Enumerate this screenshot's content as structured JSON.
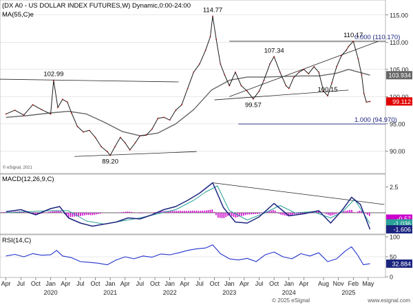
{
  "chart_data": [
    {
      "type": "line",
      "panel": "price",
      "title": "(DX A0 - US DOLLAR INDEX FUTURES,W) Dynamic,0:00-24:00",
      "indicator_label": "MA(55,C)e",
      "watermark": "© eSignal, 2021",
      "ylim": [
        86.0,
        117.5
      ],
      "y_ticks": [
        90.0,
        95.0,
        100.0,
        105.0,
        110.0,
        115.0
      ],
      "y_tick_labels": [
        "90.00",
        "95.00",
        "100.00",
        "105.00",
        "110.00",
        "115.00"
      ],
      "series": [
        {
          "name": "",
          "x": [
            2019.25,
            2019.4,
            2019.55,
            2019.7,
            2019.85,
            2020.0,
            2020.05,
            2020.12,
            2020.2,
            2020.28,
            2020.35,
            2020.45,
            2020.55,
            2020.65,
            2020.75,
            2020.85,
            2020.95,
            2021.0,
            2021.08,
            2021.17,
            2021.25,
            2021.33,
            2021.42,
            2021.5,
            2021.6,
            2021.7,
            2021.8,
            2021.9,
            2022.0,
            2022.1,
            2022.2,
            2022.3,
            2022.4,
            2022.5,
            2022.6,
            2022.68,
            2022.72,
            2022.78,
            2022.85,
            2022.92,
            2023.0,
            2023.1,
            2023.2,
            2023.3,
            2023.4,
            2023.5,
            2023.58,
            2023.68,
            2023.75,
            2023.85,
            2023.95,
            2024.0,
            2024.08,
            2024.17,
            2024.25,
            2024.33,
            2024.42,
            2024.5,
            2024.58,
            2024.65,
            2024.72,
            2024.8,
            2024.88,
            2024.96,
            2025.0,
            2025.08,
            2025.16,
            2025.22,
            2025.26,
            2025.3,
            2025.36
          ],
          "values": [
            96.8,
            97.5,
            96.6,
            98.5,
            97.6,
            96.8,
            102.99,
            98.0,
            99.5,
            99.0,
            97.0,
            94.5,
            93.5,
            93.8,
            92.5,
            90.8,
            89.9,
            89.2,
            90.8,
            92.5,
            91.5,
            90.2,
            91.5,
            92.8,
            92.9,
            94.0,
            96.0,
            96.2,
            95.7,
            97.5,
            98.5,
            101.5,
            104.5,
            106.0,
            108.5,
            111.0,
            114.77,
            110.5,
            106.0,
            104.0,
            102.0,
            104.5,
            102.0,
            101.0,
            99.57,
            101.0,
            103.0,
            106.0,
            107.34,
            104.5,
            102.0,
            101.5,
            103.5,
            104.5,
            105.0,
            104.2,
            105.5,
            104.5,
            101.0,
            100.15,
            102.5,
            105.5,
            107.5,
            108.5,
            109.2,
            110.17,
            107.0,
            104.0,
            100.5,
            99.0,
            99.112
          ]
        },
        {
          "name": "MA(55,C)e",
          "x": [
            2019.25,
            2019.6,
            2020.0,
            2020.3,
            2020.6,
            2020.9,
            2021.2,
            2021.5,
            2021.8,
            2022.1,
            2022.4,
            2022.7,
            2023.0,
            2023.3,
            2023.6,
            2023.9,
            2024.2,
            2024.5,
            2024.8,
            2025.0,
            2025.36
          ],
          "values": [
            96.2,
            96.5,
            97.0,
            97.3,
            96.8,
            95.3,
            93.6,
            92.8,
            93.3,
            95.0,
            97.6,
            101.2,
            103.0,
            103.6,
            103.6,
            103.7,
            103.8,
            103.8,
            104.3,
            105.0,
            103.934
          ]
        }
      ],
      "annotations": [
        {
          "text": "102.99",
          "x": 2020.05,
          "y": 102.99
        },
        {
          "text": "89.20",
          "x": 2021.0,
          "y": 89.2
        },
        {
          "text": "114.77",
          "x": 2022.72,
          "y": 114.77
        },
        {
          "text": "107.34",
          "x": 2023.75,
          "y": 107.34
        },
        {
          "text": "99.57",
          "x": 2023.4,
          "y": 99.57
        },
        {
          "text": "110.17",
          "x": 2025.08,
          "y": 110.17
        },
        {
          "text": "100.15",
          "x": 2024.65,
          "y": 100.15
        },
        {
          "text": "0.000 (110.170)",
          "x": 2025.1,
          "y": 110.17
        },
        {
          "text": "1.000 (94.970)",
          "x": 2025.1,
          "y": 94.97
        }
      ],
      "trendlines": [
        {
          "x": [
            2019.15,
            2022.15
          ],
          "y": [
            103.2,
            102.7
          ]
        },
        {
          "x": [
            2020.4,
            2022.45
          ],
          "y": [
            89.0,
            89.9
          ]
        },
        {
          "x": [
            2023.0,
            2025.5
          ],
          "y": [
            100.0,
            110.17
          ]
        },
        {
          "x": [
            2022.75,
            2025.0
          ],
          "y": [
            99.4,
            101.2
          ]
        }
      ],
      "hlines": [
        {
          "y": 110.17,
          "x_from": 2023.0
        },
        {
          "y": 94.97,
          "x_from": 2023.15
        }
      ],
      "last_price_tags": [
        {
          "text": "103.934",
          "y": 103.934,
          "color": "#666666"
        },
        {
          "text": "99.112",
          "y": 99.112,
          "color": "#e00000"
        }
      ]
    },
    {
      "type": "line",
      "panel": "macd",
      "title": "MACD(12,26,9,C)",
      "ylim": [
        -2.0,
        3.6
      ],
      "y_ticks": [
        2.5
      ],
      "y_tick_labels": [
        "2.5"
      ],
      "series": [
        {
          "name": "MACD",
          "x": [
            2019.25,
            2019.5,
            2019.75,
            2020.0,
            2020.15,
            2020.3,
            2020.5,
            2020.7,
            2020.9,
            2021.1,
            2021.3,
            2021.5,
            2021.7,
            2021.9,
            2022.1,
            2022.3,
            2022.5,
            2022.72,
            2022.9,
            2023.1,
            2023.3,
            2023.5,
            2023.75,
            2024.0,
            2024.25,
            2024.5,
            2024.7,
            2024.9,
            2025.05,
            2025.2,
            2025.36
          ],
          "values": [
            0.1,
            0.3,
            -0.2,
            0.4,
            0.6,
            -0.5,
            -1.0,
            -1.3,
            -1.1,
            -0.9,
            -0.5,
            -0.6,
            -0.2,
            0.3,
            0.6,
            1.2,
            1.9,
            2.9,
            0.5,
            -0.9,
            -1.0,
            -0.4,
            0.9,
            -0.3,
            -0.1,
            0.2,
            -1.0,
            0.3,
            1.5,
            0.8,
            -1.606
          ]
        },
        {
          "name": "Signal",
          "x": [
            2019.25,
            2019.6,
            2020.0,
            2020.3,
            2020.6,
            2020.9,
            2021.2,
            2021.5,
            2021.8,
            2022.1,
            2022.4,
            2022.6,
            2022.8,
            2023.0,
            2023.3,
            2023.6,
            2023.85,
            2024.1,
            2024.4,
            2024.7,
            2024.9,
            2025.1,
            2025.36
          ],
          "values": [
            0.0,
            0.1,
            0.2,
            0.2,
            -0.8,
            -1.1,
            -0.8,
            -0.5,
            -0.1,
            0.3,
            1.2,
            2.0,
            2.6,
            0.2,
            -0.7,
            0.0,
            0.7,
            0.0,
            0.1,
            -0.5,
            0.1,
            1.3,
            -1.036
          ]
        }
      ],
      "trendline": {
        "x": [
          2022.72,
          2025.6
        ],
        "y": [
          2.9,
          0.8
        ]
      },
      "value_tags": [
        {
          "text": "-0.57",
          "y": -0.57,
          "color": "#cc00cc"
        },
        {
          "text": "-1.036",
          "y": -1.036,
          "color": "#2aa198"
        },
        {
          "text": "-1.606",
          "y": -1.606,
          "color": "#1a237e"
        }
      ]
    },
    {
      "type": "line",
      "panel": "rsi",
      "title": "RSI(14,C)",
      "ylim": [
        0,
        100
      ],
      "y_ticks": [
        0,
        50,
        100
      ],
      "y_tick_labels": [
        "0",
        "50",
        "100"
      ],
      "series": [
        {
          "name": "RSI(14,C)",
          "x": [
            2019.25,
            2019.4,
            2019.55,
            2019.7,
            2019.85,
            2020.0,
            2020.1,
            2020.2,
            2020.35,
            2020.5,
            2020.65,
            2020.8,
            2020.95,
            2021.1,
            2021.25,
            2021.4,
            2021.55,
            2021.7,
            2021.85,
            2022.0,
            2022.15,
            2022.3,
            2022.45,
            2022.6,
            2022.72,
            2022.85,
            2023.0,
            2023.15,
            2023.3,
            2023.45,
            2023.6,
            2023.75,
            2023.9,
            2024.05,
            2024.2,
            2024.35,
            2024.5,
            2024.65,
            2024.8,
            2024.95,
            2025.05,
            2025.15,
            2025.25,
            2025.36
          ],
          "values": [
            52,
            56,
            50,
            58,
            54,
            55,
            66,
            52,
            48,
            38,
            36,
            34,
            30,
            42,
            50,
            45,
            52,
            49,
            57,
            55,
            60,
            66,
            70,
            72,
            80,
            58,
            45,
            42,
            46,
            38,
            55,
            62,
            50,
            45,
            58,
            52,
            60,
            38,
            45,
            65,
            75,
            55,
            30,
            32.884
          ]
        }
      ],
      "value_tags": [
        {
          "text": "32.884",
          "y": 32.884,
          "color": "#1a237e"
        }
      ]
    }
  ],
  "x_axis": {
    "xlim": [
      2019.15,
      2025.62
    ],
    "tick_labels": [
      {
        "label": "Apr",
        "x": 2019.25
      },
      {
        "label": "Jul",
        "x": 2019.5
      },
      {
        "label": "Oct",
        "x": 2019.75
      },
      {
        "label": "Jan",
        "x": 2020.0
      },
      {
        "label": "Apr",
        "x": 2020.25
      },
      {
        "label": "Jul",
        "x": 2020.5
      },
      {
        "label": "Oct",
        "x": 2020.75
      },
      {
        "label": "Jan",
        "x": 2021.0
      },
      {
        "label": "Apr",
        "x": 2021.25
      },
      {
        "label": "Jul",
        "x": 2021.5
      },
      {
        "label": "Oct",
        "x": 2021.75
      },
      {
        "label": "Jan",
        "x": 2022.0
      },
      {
        "label": "Apr",
        "x": 2022.25
      },
      {
        "label": "Jul",
        "x": 2022.5
      },
      {
        "label": "Oct",
        "x": 2022.75
      },
      {
        "label": "Jan",
        "x": 2023.0
      },
      {
        "label": "Apr",
        "x": 2023.25
      },
      {
        "label": "Jul",
        "x": 2023.5
      },
      {
        "label": "Oct",
        "x": 2023.75
      },
      {
        "label": "Jan",
        "x": 2024.0
      },
      {
        "label": "Apr",
        "x": 2024.25
      },
      {
        "label": "Aug",
        "x": 2024.58
      },
      {
        "label": "Nov",
        "x": 2024.83
      },
      {
        "label": "Feb",
        "x": 2025.08
      },
      {
        "label": "May",
        "x": 2025.33
      }
    ],
    "year_labels": [
      {
        "label": "2020",
        "x": 2020.0
      },
      {
        "label": "2021",
        "x": 2021.0
      },
      {
        "label": "2022",
        "x": 2022.0
      },
      {
        "label": "2023",
        "x": 2023.0
      },
      {
        "label": "2024",
        "x": 2024.0
      },
      {
        "label": "2025",
        "x": 2025.0
      }
    ]
  },
  "footer": {
    "copyright": "© 2025 eSignal",
    "url": "www.esignal.com"
  },
  "colors": {
    "price": "#1a1a1a",
    "ma": "#666666",
    "macd": "#1a237e",
    "signal": "#2aa198",
    "histogram": "#cc00cc",
    "rsi": "#2233cc",
    "fib_line": "#1a237e",
    "grid": "#d0d0d0"
  }
}
